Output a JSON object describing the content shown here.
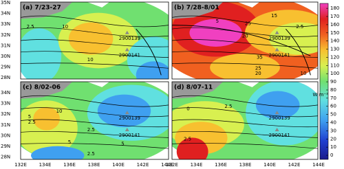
{
  "panels": [
    {
      "label": "(a) 7/23-27",
      "floats": [
        "2900139",
        "2900141"
      ],
      "contour_labels": [
        "2.5",
        "10",
        "10"
      ]
    },
    {
      "label": "(b) 7/28-8/01",
      "floats": [
        "2900139",
        "2900141"
      ],
      "contour_labels": [
        "5",
        "2.5",
        "15",
        "20",
        "25",
        "35",
        "25",
        "20",
        "10"
      ]
    },
    {
      "label": "(c) 8/02-06",
      "floats": [
        "2900139",
        "2900141"
      ],
      "contour_labels": [
        "5",
        "2.5",
        "10",
        "2.5",
        "5",
        "5",
        "2.5"
      ]
    },
    {
      "label": "(d) 8/07-11",
      "floats": [
        "2900139",
        "2900141"
      ],
      "contour_labels": [
        "0",
        "2.5",
        "2.5"
      ]
    }
  ],
  "y_labels_top": [
    "35N",
    "34N",
    "33N",
    "32N",
    "31N",
    "30N",
    "29N",
    "28N"
  ],
  "y_labels_bottom": [
    "34N",
    "33N",
    "32N",
    "31N",
    "30N",
    "29N",
    "28N"
  ],
  "x_labels": [
    "132E",
    "134E",
    "136E",
    "138E",
    "140E",
    "142E",
    "144E"
  ],
  "colorbar": {
    "lim": [
      -5,
      186
    ],
    "ticks": [
      0,
      10,
      20,
      30,
      40,
      50,
      60,
      70,
      80,
      90,
      100,
      110,
      120,
      130,
      140,
      150,
      160,
      170,
      180
    ],
    "unit": "W m⁻²"
  }
}
